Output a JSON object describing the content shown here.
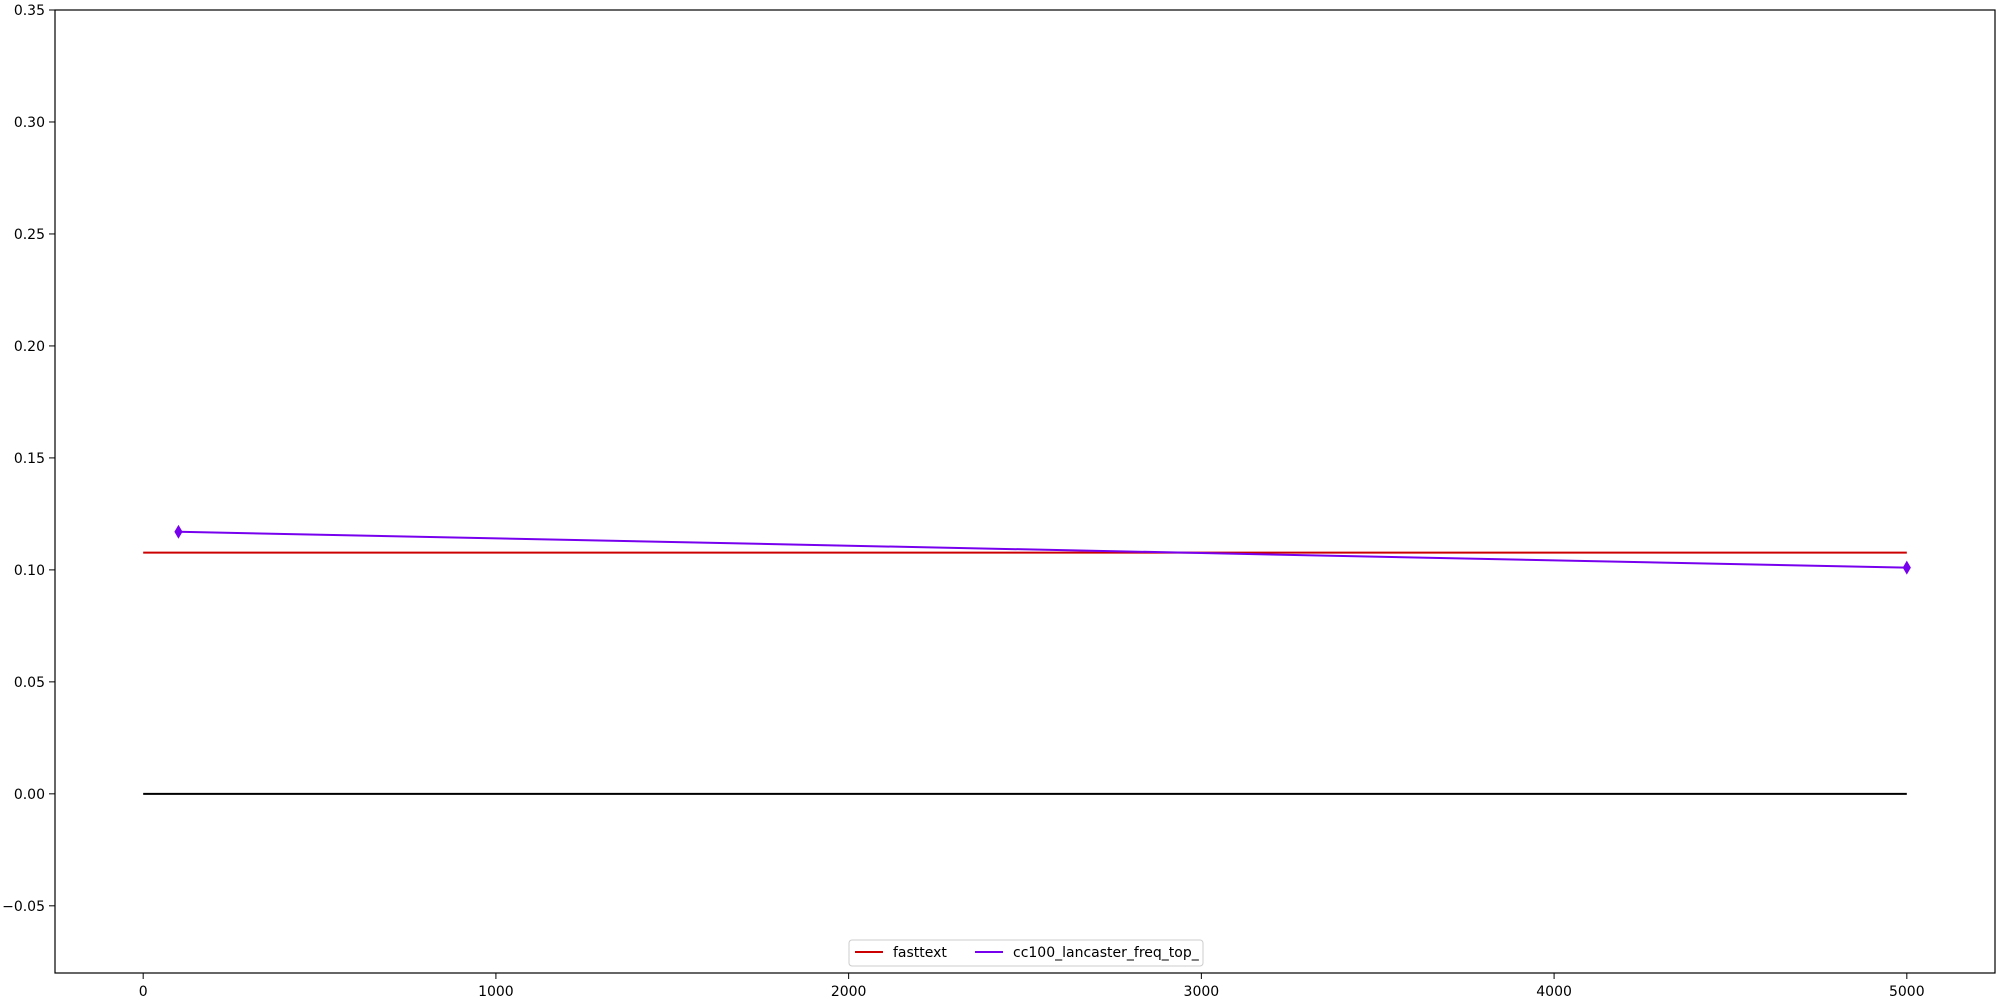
{
  "chart_data": {
    "type": "line",
    "title": "",
    "xlabel": "",
    "ylabel": "",
    "xlim": [
      -250,
      5250
    ],
    "ylim": [
      -0.08,
      0.35
    ],
    "x_ticks": [
      0,
      1000,
      2000,
      3000,
      4000,
      5000
    ],
    "x_tick_labels": [
      "0",
      "1000",
      "2000",
      "3000",
      "4000",
      "5000"
    ],
    "y_ticks": [
      -0.05,
      0.0,
      0.05,
      0.1,
      0.15,
      0.2,
      0.25,
      0.3,
      0.35
    ],
    "y_tick_labels": [
      "−0.05",
      "0.00",
      "0.05",
      "0.10",
      "0.15",
      "0.20",
      "0.25",
      "0.30",
      "0.35"
    ],
    "grid": false,
    "legend_position": "bottom-center",
    "series": [
      {
        "name": "fasttext",
        "color": "#cc0000",
        "marker": "none",
        "x": [
          0,
          5000
        ],
        "y": [
          0.1077,
          0.1077
        ]
      },
      {
        "name": "cc100_lancaster_freq_top_",
        "color": "#7700ee",
        "marker": "thin_diamond",
        "x": [
          100,
          5000
        ],
        "y": [
          0.117,
          0.101
        ]
      }
    ],
    "reference_lines": [
      {
        "color": "#000000",
        "x": [
          0,
          5000
        ],
        "y": [
          0.0,
          0.0
        ]
      }
    ]
  }
}
